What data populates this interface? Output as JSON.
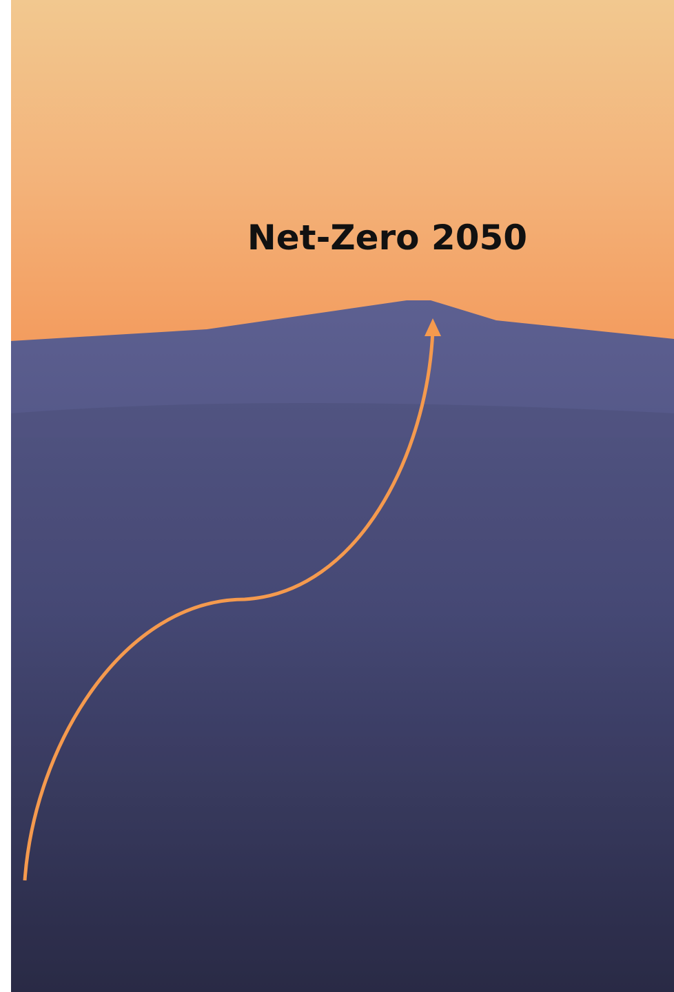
{
  "title": "Net-Zero 2050"
}
